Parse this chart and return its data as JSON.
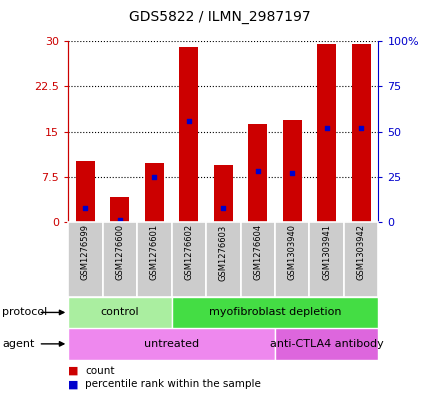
{
  "title": "GDS5822 / ILMN_2987197",
  "samples": [
    "GSM1276599",
    "GSM1276600",
    "GSM1276601",
    "GSM1276602",
    "GSM1276603",
    "GSM1276604",
    "GSM1303940",
    "GSM1303941",
    "GSM1303942"
  ],
  "counts": [
    10.2,
    4.2,
    9.8,
    29.0,
    9.5,
    16.2,
    17.0,
    29.6,
    29.6
  ],
  "percentiles": [
    7.5,
    1.0,
    25.0,
    56.0,
    7.5,
    28.0,
    27.0,
    52.0,
    52.0
  ],
  "bar_color": "#cc0000",
  "percentile_color": "#0000cc",
  "ylim_left": [
    0,
    30
  ],
  "ylim_right": [
    0,
    100
  ],
  "yticks_left": [
    0,
    7.5,
    15,
    22.5,
    30
  ],
  "yticks_left_labels": [
    "0",
    "7.5",
    "15",
    "22.5",
    "30"
  ],
  "yticks_right": [
    0,
    25,
    50,
    75,
    100
  ],
  "yticks_right_labels": [
    "0",
    "25",
    "50",
    "75",
    "100%"
  ],
  "left_axis_color": "#cc0000",
  "right_axis_color": "#0000cc",
  "protocol_groups": [
    {
      "label": "control",
      "start": 0,
      "end": 3,
      "color": "#aaeea0"
    },
    {
      "label": "myofibroblast depletion",
      "start": 3,
      "end": 9,
      "color": "#44dd44"
    }
  ],
  "agent_groups": [
    {
      "label": "untreated",
      "start": 0,
      "end": 6,
      "color": "#ee88ee"
    },
    {
      "label": "anti-CTLA4 antibody",
      "start": 6,
      "end": 9,
      "color": "#dd66dd"
    }
  ],
  "bar_width": 0.55,
  "grid_color": "black",
  "plot_area_bg": "#ffffff",
  "sample_area_color": "#cccccc"
}
